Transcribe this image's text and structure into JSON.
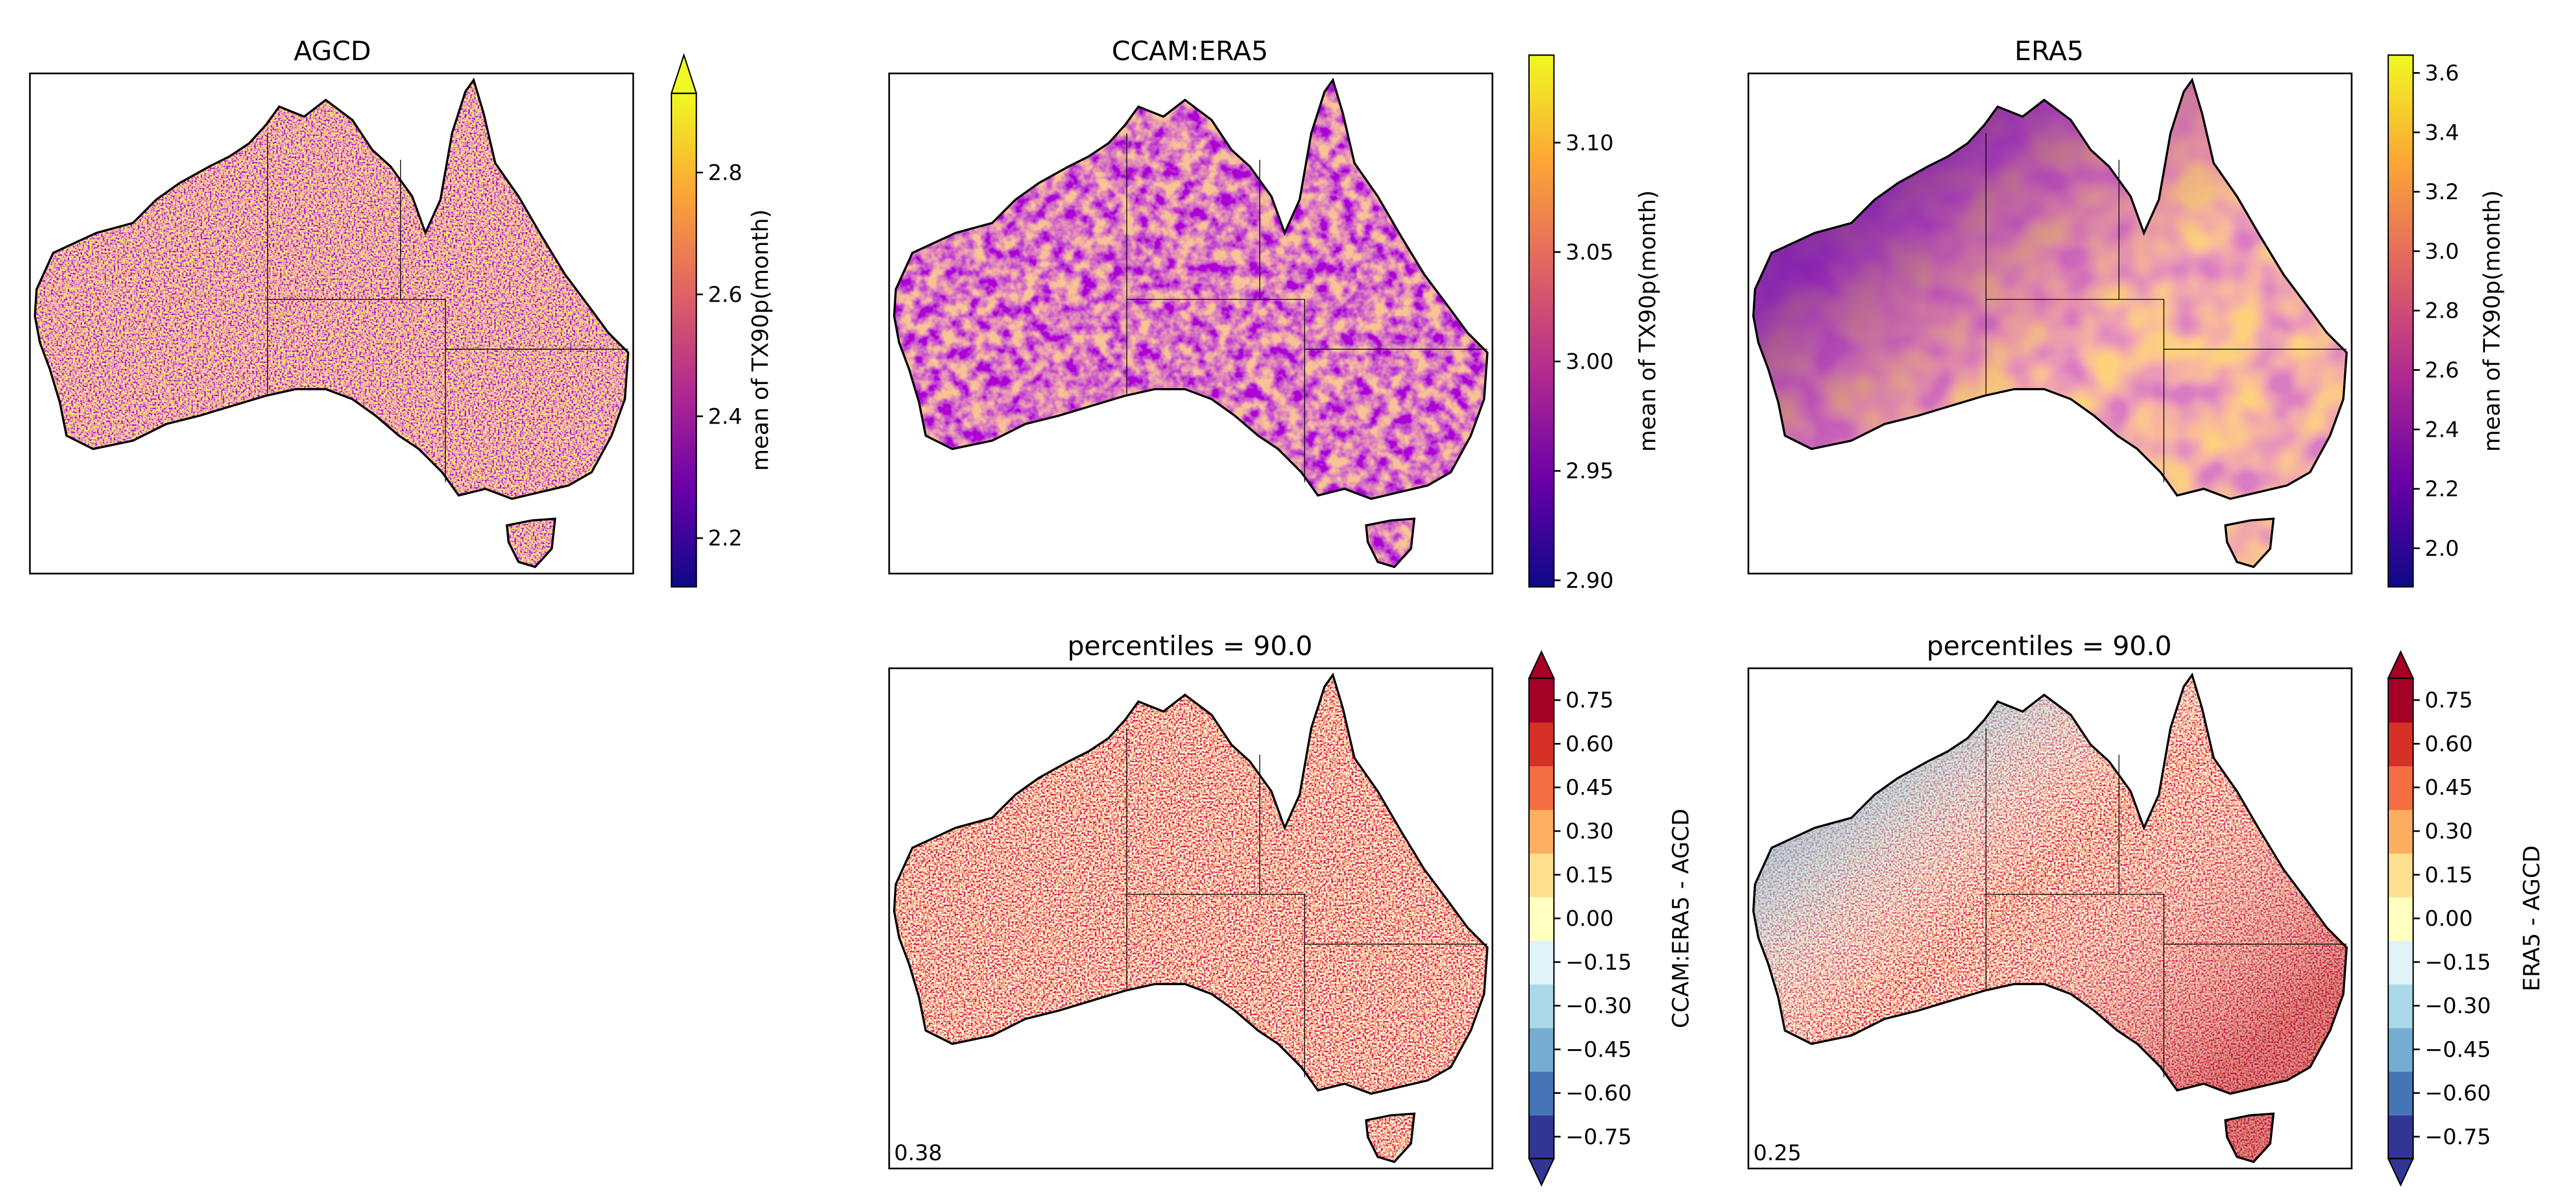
{
  "chart_data": [
    {
      "type": "heatmap",
      "title": "AGCD",
      "colormap": "plasma",
      "colorbar_label": "mean of TX90p(month)",
      "colorbar_ticks": [
        "2.2",
        "2.4",
        "2.6",
        "2.8"
      ],
      "colorbar_range": [
        2.12,
        2.93
      ],
      "colorbar_extend": "max",
      "annotation": ""
    },
    {
      "type": "heatmap",
      "title": "CCAM:ERA5",
      "colormap": "plasma",
      "colorbar_label": "mean of TX90p(month)",
      "colorbar_ticks": [
        "2.90",
        "2.95",
        "3.00",
        "3.05",
        "3.10"
      ],
      "colorbar_range": [
        2.897,
        3.14
      ],
      "colorbar_extend": "neither",
      "annotation": ""
    },
    {
      "type": "heatmap",
      "title": "ERA5",
      "colormap": "plasma",
      "colorbar_label": "mean of TX90p(month)",
      "colorbar_ticks": [
        "2.0",
        "2.2",
        "2.4",
        "2.6",
        "2.8",
        "3.0",
        "3.2",
        "3.4",
        "3.6"
      ],
      "colorbar_range": [
        1.87,
        3.66
      ],
      "colorbar_extend": "neither",
      "annotation": ""
    },
    {
      "type": "heatmap",
      "title": "percentiles = 90.0",
      "colormap": "RdYlBu_r",
      "colorbar_label": "CCAM:ERA5 - AGCD",
      "colorbar_ticks": [
        "0.75",
        "0.60",
        "0.45",
        "0.30",
        "0.15",
        "0.00",
        "−0.15",
        "−0.30",
        "−0.45",
        "−0.60",
        "−0.75"
      ],
      "colorbar_extend": "both",
      "annotation": "0.38"
    },
    {
      "type": "heatmap",
      "title": "percentiles = 90.0",
      "colormap": "RdYlBu_r",
      "colorbar_label": "ERA5 - AGCD",
      "colorbar_ticks": [
        "0.75",
        "0.60",
        "0.45",
        "0.30",
        "0.15",
        "0.00",
        "−0.15",
        "−0.30",
        "−0.45",
        "−0.60",
        "−0.75"
      ],
      "colorbar_extend": "both",
      "annotation": "0.25"
    }
  ],
  "colors": {
    "plasma": [
      "#0d0887",
      "#6a00a8",
      "#b12a90",
      "#e16462",
      "#fca636",
      "#f0f921"
    ],
    "diverging": [
      "#313695",
      "#4575b4",
      "#74add1",
      "#abd9e9",
      "#e0f3f8",
      "#ffffbf",
      "#fee090",
      "#fdae61",
      "#f46d43",
      "#d73027",
      "#a50026"
    ]
  }
}
